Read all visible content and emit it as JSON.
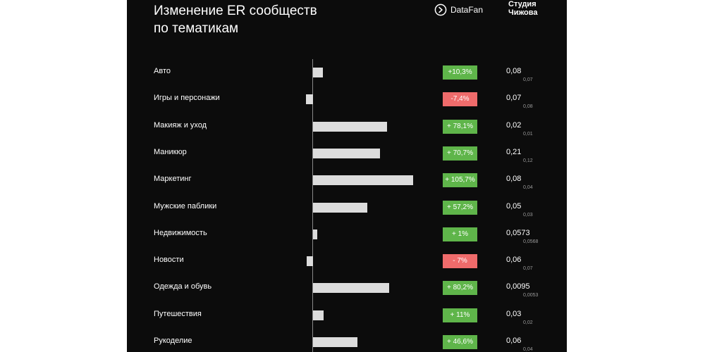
{
  "header": {
    "title_line1": "Изменение ER сообществ",
    "title_line2": "по тематикам",
    "brand_datafan": "DataFan",
    "brand_studio_line1": "Студия",
    "brand_studio_line2": "Чижова"
  },
  "colors": {
    "background": "#0c0c0c",
    "bar": "#dcdcdc",
    "positive": "#5fb54a",
    "negative": "#ef6b6b"
  },
  "chart_data": {
    "type": "bar",
    "orientation": "horizontal",
    "title": "Изменение ER сообществ по тематикам",
    "categories": [
      "Авто",
      "Игры и персонажи",
      "Макияж и уход",
      "Маникюр",
      "Маркетинг",
      "Мужские паблики",
      "Недвижимость",
      "Новости",
      "Одежда и обувь",
      "Путешествия",
      "Рукоделие"
    ],
    "values": [
      10.3,
      -7.4,
      78.1,
      70.7,
      105.7,
      57.2,
      1,
      -7,
      80.2,
      11,
      46.6
    ],
    "change_labels": [
      "+10,3%",
      "-7,4%",
      "+ 78,1%",
      "+ 70,7%",
      "+ 105,7%",
      "+ 57,2%",
      "+ 1%",
      "- 7%",
      "+ 80,2%",
      "+ 11%",
      "+ 46,6%"
    ],
    "er_current": [
      "0,08",
      "0,07",
      "0,02",
      "0,21",
      "0,08",
      "0,05",
      "0,0573",
      "0,06",
      "0,0095",
      "0,03",
      "0,06"
    ],
    "er_previous": [
      "0,07",
      "0,08",
      "0,01",
      "0,12",
      "0,04",
      "0,03",
      "0,0568",
      "0,07",
      "0,0053",
      "0,02",
      "0,04"
    ],
    "xlim": [
      -10,
      110
    ],
    "grid": false,
    "legend": "none"
  }
}
